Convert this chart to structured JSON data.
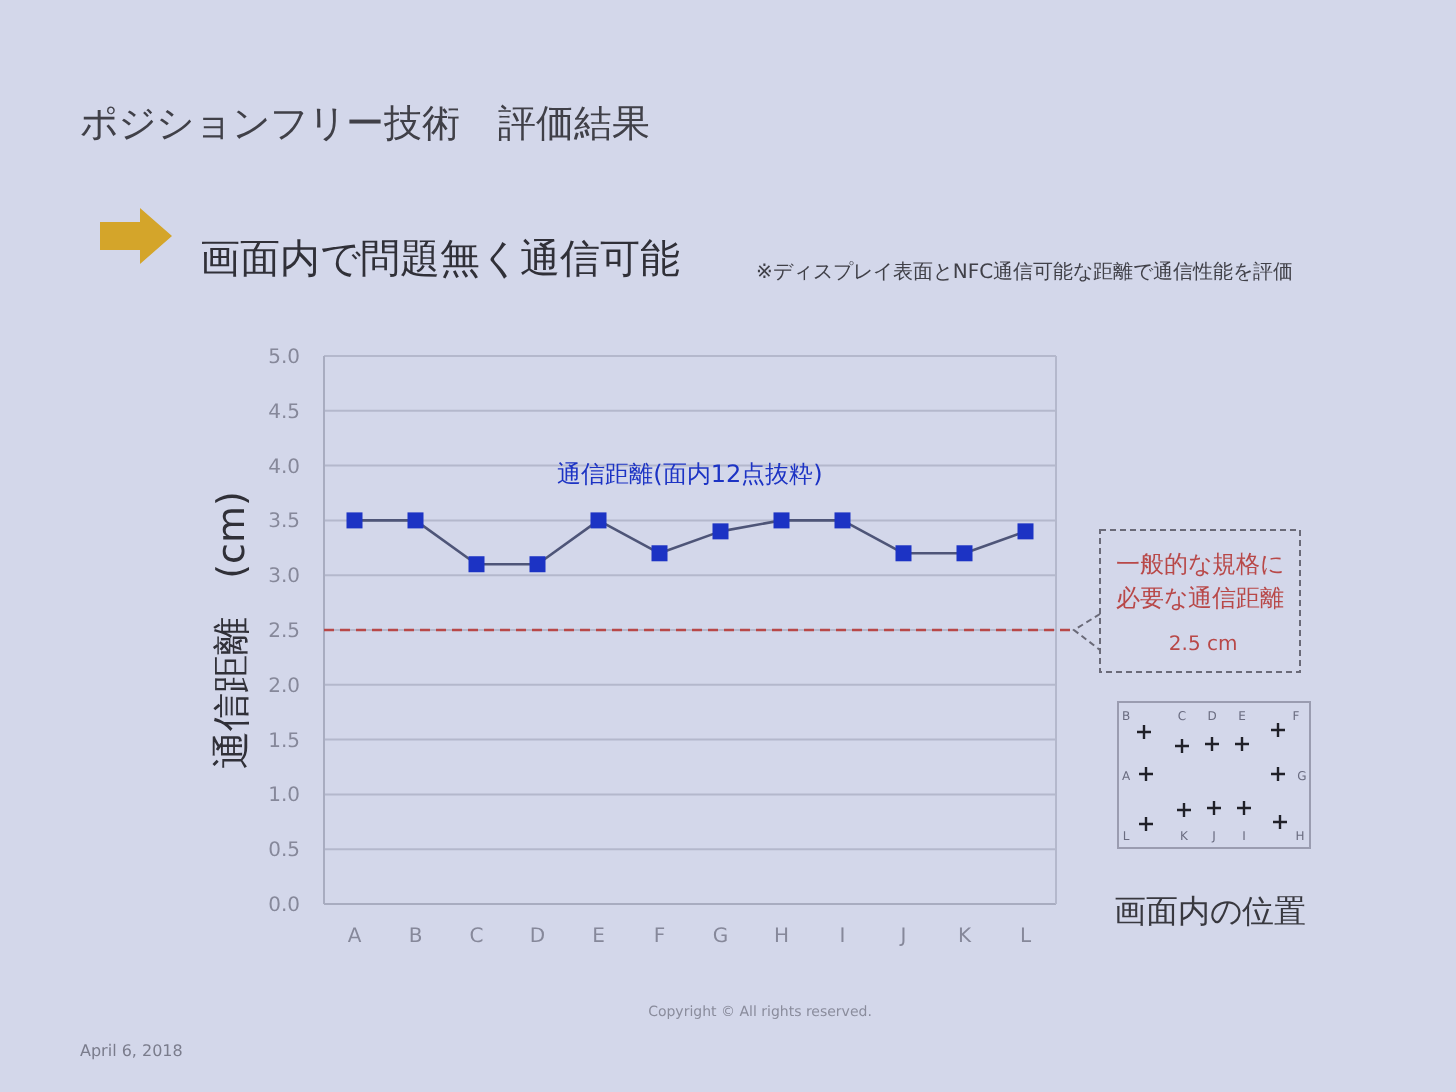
{
  "chart_data": {
    "type": "line",
    "title": "ポジションフリー技術　評価結果",
    "subtitle": "画面内で問題無く通信可能",
    "ylabel": "通信距離　(cm)",
    "categories": [
      "A",
      "B",
      "C",
      "D",
      "E",
      "F",
      "G",
      "H",
      "I",
      "J",
      "K",
      "L"
    ],
    "series": [
      {
        "name": "通信距離(面内12点抜粋)",
        "color": "#1c33c4",
        "values": [
          3.5,
          3.5,
          3.1,
          3.1,
          3.5,
          3.2,
          3.4,
          3.5,
          3.5,
          3.2,
          3.2,
          3.4
        ]
      }
    ],
    "ylim": [
      0,
      5
    ],
    "yticks": [
      {
        "value": 0,
        "label": "0.0"
      },
      {
        "value": 0.5,
        "label": "0.5"
      },
      {
        "value": 1,
        "label": "1.0"
      },
      {
        "value": 1.5,
        "label": "1.5"
      },
      {
        "value": 2,
        "label": "2.0"
      },
      {
        "value": 2.5,
        "label": "2.5"
      },
      {
        "value": 3,
        "label": "3.0"
      },
      {
        "value": 3.5,
        "label": "3.5"
      },
      {
        "value": 4,
        "label": "4.0"
      },
      {
        "value": 4.5,
        "label": "4.5"
      },
      {
        "value": 5,
        "label": "5.0"
      }
    ],
    "grid": "y",
    "marker": "square",
    "line_style": "solid",
    "ref_lines": [
      {
        "axis": "y",
        "value": 2.5,
        "label": "一般的な規格に必要な通信距離\n2.5 cm",
        "color": "#b84848",
        "line_style": "dashed"
      }
    ],
    "annotations": [
      "※ディスプレイ表面とNFC通信可能な距離で通信性能を評価",
      "画面内の位置",
      "B",
      "C",
      "D",
      "E",
      "F",
      "A",
      "G",
      "L",
      "K",
      "J",
      "I",
      "H",
      "April 6, 2018",
      "Copyright © All rights reserved."
    ]
  }
}
